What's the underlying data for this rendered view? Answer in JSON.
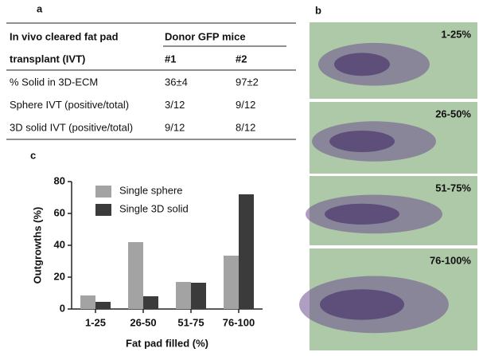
{
  "panel_a": {
    "label": "a",
    "header_rows": [
      [
        "In vivo cleared fat pad",
        "Donor GFP mice"
      ],
      [
        "transplant (IVT)",
        "#1",
        "#2"
      ]
    ],
    "rows": [
      [
        "% Solid in 3D-ECM",
        "36±4",
        "97±2"
      ],
      [
        "Sphere IVT (positive/total)",
        "3/12",
        "9/12"
      ],
      [
        "3D solid IVT (positive/total)",
        "9/12",
        "8/12"
      ]
    ]
  },
  "panel_b": {
    "label": "b",
    "images": [
      "1-25%",
      "26-50%",
      "51-75%",
      "76-100%"
    ]
  },
  "chart_data": {
    "panel_label": "c",
    "type": "bar",
    "x_label": "Fat pad filled (%)",
    "y_label": "Outgrowths (%)",
    "categories": [
      "1-25",
      "26-50",
      "51-75",
      "76-100"
    ],
    "series": [
      {
        "name": "Single sphere",
        "color": "#a3a3a3",
        "values": [
          8.5,
          42,
          17,
          33.5
        ]
      },
      {
        "name": "Single 3D solid",
        "color": "#3b3b3b",
        "values": [
          4.5,
          8,
          16.5,
          72
        ]
      }
    ],
    "ylim": [
      0,
      80
    ],
    "yticks": [
      0,
      20,
      40,
      60,
      80
    ],
    "legend": "upper-left"
  }
}
